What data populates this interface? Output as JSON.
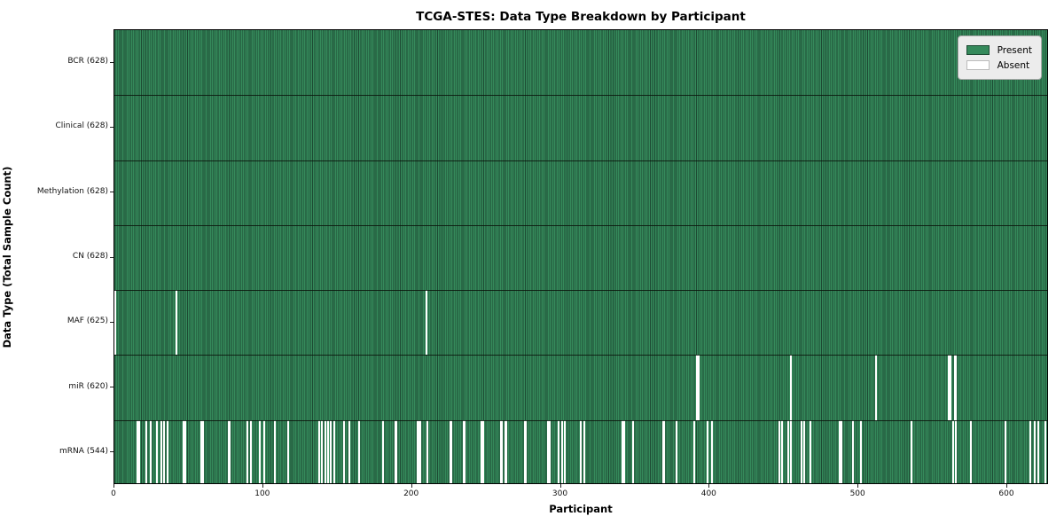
{
  "window": {
    "title": "TCGA-STES: Data Type Breakdown by Participant"
  },
  "colors": {
    "present_fill": "#358a5b",
    "present_edge": "#1d4a33",
    "absent_fill": "#ffffff",
    "row_separator": "#0a140c",
    "plot_border": "#000000",
    "legend_bg": "#ececec",
    "legend_border": "#a9a9a9",
    "swatch_present_border": "#1d4a33",
    "swatch_absent_border": "#bbbbbb"
  },
  "legend": {
    "present_label": "Present",
    "absent_label": "Absent"
  },
  "chart_data": {
    "type": "heatmap",
    "title": "TCGA-STES: Data Type Breakdown by Participant",
    "xlabel": "Participant",
    "ylabel": "Data Type (Total Sample Count)",
    "legend_entries": [
      "Present",
      "Absent"
    ],
    "legend_position": "upper right",
    "grid": false,
    "n_participants": 628,
    "x_range": [
      0,
      628
    ],
    "x_ticks": [
      0,
      100,
      200,
      300,
      400,
      500,
      600
    ],
    "cell_states": {
      "present": 1,
      "absent": 0
    },
    "rows": [
      {
        "label": "BCR (628)",
        "data_type": "BCR",
        "present_count": 628,
        "absent_count": 0,
        "absent_participants": []
      },
      {
        "label": "Clinical (628)",
        "data_type": "Clinical",
        "present_count": 628,
        "absent_count": 0,
        "absent_participants": []
      },
      {
        "label": "Methylation (628)",
        "data_type": "Methylation",
        "present_count": 628,
        "absent_count": 0,
        "absent_participants": []
      },
      {
        "label": "CN (628)",
        "data_type": "CN",
        "present_count": 628,
        "absent_count": 0,
        "absent_participants": []
      },
      {
        "label": "MAF (625)",
        "data_type": "MAF",
        "present_count": 625,
        "absent_count": 3,
        "absent_participants": [
          0,
          41,
          209
        ]
      },
      {
        "label": "miR (620)",
        "data_type": "miR",
        "present_count": 620,
        "absent_count": 8,
        "absent_participants": [
          391,
          392,
          454,
          511,
          560,
          561,
          564,
          565
        ]
      },
      {
        "label": "mRNA (544)",
        "data_type": "mRNA",
        "present_count": 544,
        "absent_count": 84,
        "absent_participants": [
          15,
          16,
          21,
          24,
          28,
          31,
          33,
          35,
          46,
          47,
          58,
          59,
          76,
          77,
          89,
          91,
          97,
          100,
          107,
          116,
          137,
          139,
          141,
          143,
          145,
          147,
          154,
          157,
          164,
          180,
          188,
          189,
          203,
          204,
          205,
          210,
          225,
          226,
          234,
          235,
          246,
          247,
          259,
          260,
          262,
          263,
          275,
          276,
          291,
          292,
          298,
          300,
          302,
          313,
          315,
          341,
          342,
          348,
          368,
          369,
          377,
          389,
          398,
          401,
          446,
          448,
          452,
          454,
          461,
          463,
          467,
          487,
          488,
          496,
          501,
          535,
          563,
          565,
          575,
          598,
          615,
          618,
          620,
          625
        ]
      }
    ]
  }
}
